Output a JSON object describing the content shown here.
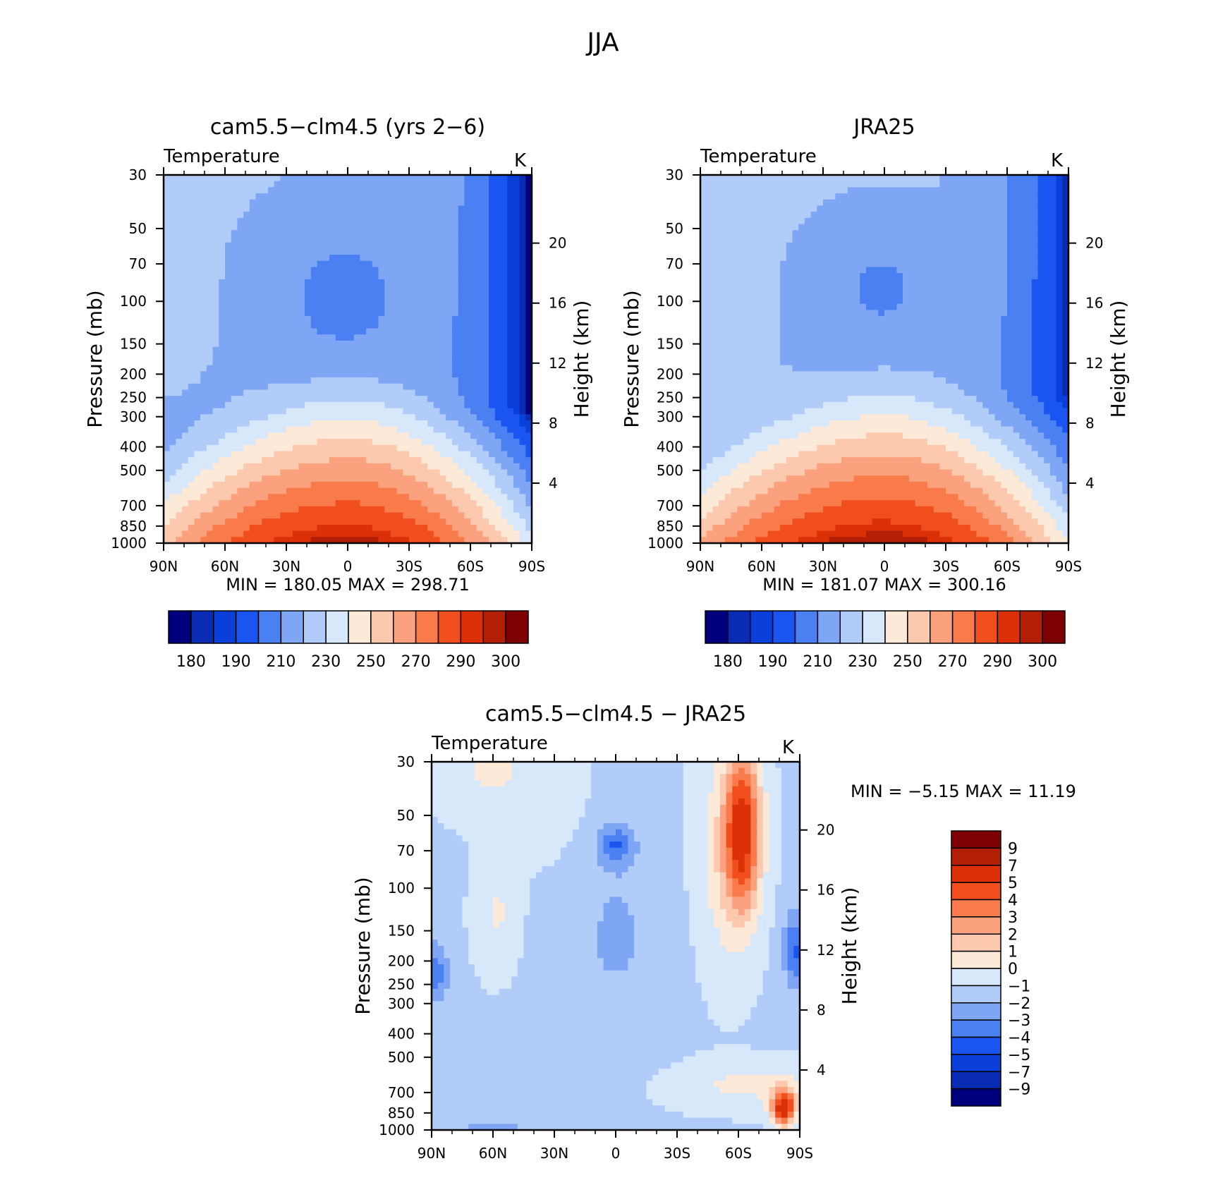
{
  "page_title": "JJA",
  "chart_data": [
    {
      "type": "contour",
      "title": "cam5.5−clm4.5 (yrs 2−6)",
      "variable_label": "Temperature",
      "units_label": "K",
      "ylabel": "Pressure (mb)",
      "ylabel_right": "Height (km)",
      "x_ticks": [
        "90N",
        "60N",
        "30N",
        "0",
        "30S",
        "60S",
        "90S"
      ],
      "y_ticks": [
        "30",
        "50",
        "70",
        "100",
        "150",
        "200",
        "250",
        "300",
        "400",
        "500",
        "700",
        "850",
        "1000"
      ],
      "y_right_ticks": [
        "4",
        "8",
        "12",
        "16",
        "20"
      ],
      "stats": {
        "min_label": "MIN",
        "min": "180.05",
        "max_label": "MAX",
        "max": "298.71"
      },
      "colorbar": {
        "orientation": "horizontal",
        "labels": [
          "180",
          "190",
          "210",
          "230",
          "250",
          "270",
          "290",
          "300"
        ],
        "colors": [
          "#00007f",
          "#0a2cb4",
          "#0a3fd9",
          "#1a55f2",
          "#4a80f2",
          "#7fa6f5",
          "#b2ccf9",
          "#d8e8fb",
          "#fde9d8",
          "#fcc8ae",
          "#fba17d",
          "#f97a4a",
          "#f14e1e",
          "#db3008",
          "#b21f05",
          "#7f0000"
        ]
      },
      "field": "model"
    },
    {
      "type": "contour",
      "title": "JRA25",
      "variable_label": "Temperature",
      "units_label": "K",
      "ylabel": "Pressure (mb)",
      "ylabel_right": "Height (km)",
      "x_ticks": [
        "90N",
        "60N",
        "30N",
        "0",
        "30S",
        "60S",
        "90S"
      ],
      "y_ticks": [
        "30",
        "50",
        "70",
        "100",
        "150",
        "200",
        "250",
        "300",
        "400",
        "500",
        "700",
        "850",
        "1000"
      ],
      "y_right_ticks": [
        "4",
        "8",
        "12",
        "16",
        "20"
      ],
      "stats": {
        "min_label": "MIN",
        "min": "181.07",
        "max_label": "MAX",
        "max": "300.16"
      },
      "colorbar": {
        "orientation": "horizontal",
        "labels": [
          "180",
          "190",
          "210",
          "230",
          "250",
          "270",
          "290",
          "300"
        ],
        "colors": [
          "#00007f",
          "#0a2cb4",
          "#0a3fd9",
          "#1a55f2",
          "#4a80f2",
          "#7fa6f5",
          "#b2ccf9",
          "#d8e8fb",
          "#fde9d8",
          "#fcc8ae",
          "#fba17d",
          "#f97a4a",
          "#f14e1e",
          "#db3008",
          "#b21f05",
          "#7f0000"
        ]
      },
      "field": "obs"
    },
    {
      "type": "contour",
      "title": "cam5.5−clm4.5 − JRA25",
      "variable_label": "Temperature",
      "units_label": "K",
      "ylabel": "Pressure (mb)",
      "ylabel_right": "Height (km)",
      "x_ticks": [
        "90N",
        "60N",
        "30N",
        "0",
        "30S",
        "60S",
        "90S"
      ],
      "y_ticks": [
        "30",
        "50",
        "70",
        "100",
        "150",
        "200",
        "250",
        "300",
        "400",
        "500",
        "700",
        "850",
        "1000"
      ],
      "y_right_ticks": [
        "4",
        "8",
        "12",
        "16",
        "20"
      ],
      "stats": {
        "min_label": "MIN",
        "min": "−5.15",
        "max_label": "MAX",
        "max": "11.19"
      },
      "colorbar": {
        "orientation": "vertical",
        "labels": [
          "9",
          "7",
          "5",
          "4",
          "3",
          "2",
          "1",
          "0",
          "−1",
          "−2",
          "−3",
          "−4",
          "−5",
          "−7",
          "−9"
        ],
        "colors": [
          "#7f0000",
          "#b21f05",
          "#db3008",
          "#f14e1e",
          "#f97a4a",
          "#fba17d",
          "#fcc8ae",
          "#fde9d8",
          "#d8e8fb",
          "#b2ccf9",
          "#7fa6f5",
          "#4a80f2",
          "#1a55f2",
          "#0a3fd9",
          "#0a2cb4",
          "#00007f"
        ]
      },
      "field": "diff"
    }
  ]
}
